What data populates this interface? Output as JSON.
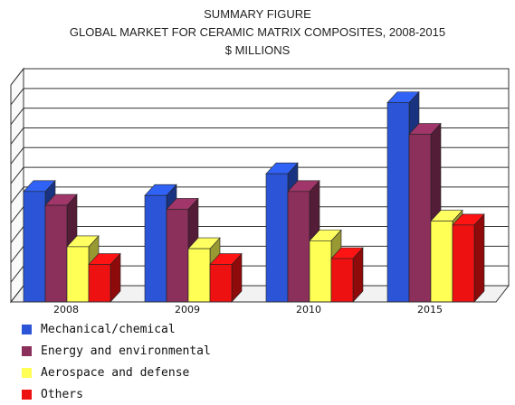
{
  "chart_data": {
    "type": "bar",
    "title": "SUMMARY FIGURE",
    "subtitle": "GLOBAL MARKET FOR CERAMIC MATRIX COMPOSITES, 2008-2015",
    "unit": "$ MILLIONS",
    "categories": [
      "2008",
      "2009",
      "2010",
      "2015"
    ],
    "series": [
      {
        "name": "Mechanical/chemical",
        "color": "#2b55d6",
        "values": [
          5.6,
          5.4,
          6.5,
          10.1
        ]
      },
      {
        "name": "Energy and environmental",
        "color": "#8b2f5b",
        "values": [
          4.9,
          4.7,
          5.6,
          8.5
        ]
      },
      {
        "name": "Aerospace and defense",
        "color": "#ffff55",
        "values": [
          2.8,
          2.7,
          3.1,
          4.1
        ]
      },
      {
        "name": "Others",
        "color": "#ee1111",
        "values": [
          1.9,
          1.9,
          2.2,
          3.9
        ]
      }
    ],
    "ylim": [
      0,
      11
    ],
    "grid": true,
    "legend_position": "bottom-left",
    "style": "3d"
  }
}
